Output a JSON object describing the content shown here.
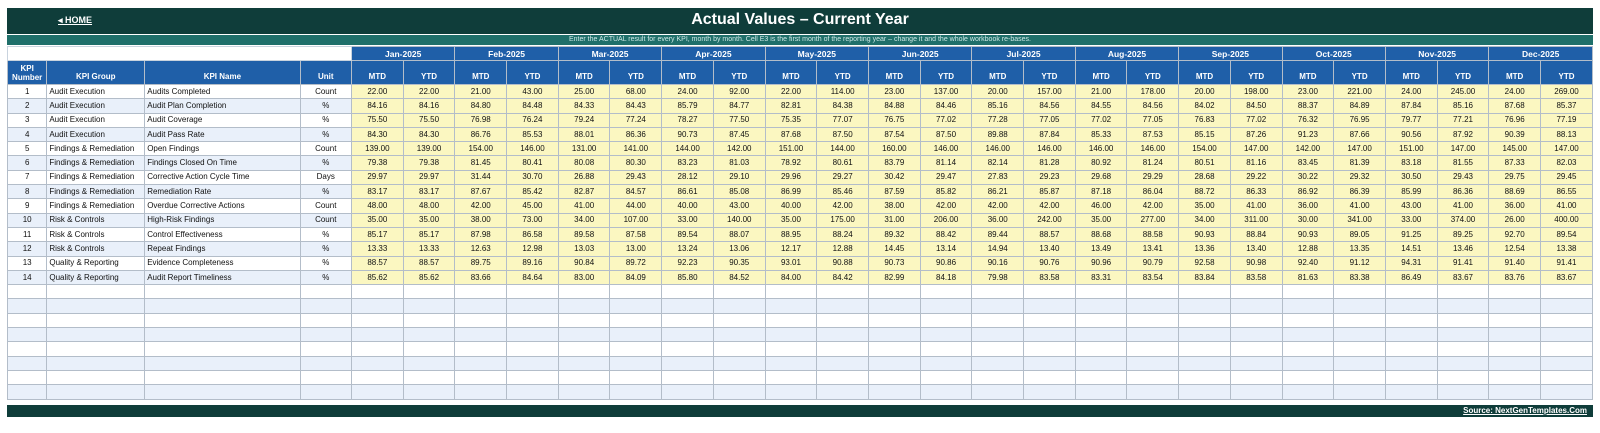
{
  "header": {
    "home_label": "◂ HOME",
    "title": "Actual Values  –  Current Year",
    "subtitle": "Enter the ACTUAL result for every KPI, month by month. Cell E3 is the first month of the reporting year – change it and the whole workbook re-bases."
  },
  "columns": {
    "kpi_number": "KPI Number",
    "kpi_group": "KPI Group",
    "kpi_name": "KPI Name",
    "unit": "Unit",
    "mtd": "MTD",
    "ytd": "YTD"
  },
  "months": [
    "Jan-2025",
    "Feb-2025",
    "Mar-2025",
    "Apr-2025",
    "May-2025",
    "Jun-2025",
    "Jul-2025",
    "Aug-2025",
    "Sep-2025",
    "Oct-2025",
    "Nov-2025",
    "Dec-2025"
  ],
  "rows": [
    {
      "num": "1",
      "group": "Audit Execution",
      "name": "Audits Completed",
      "unit": "Count",
      "values": [
        "22.00",
        "22.00",
        "21.00",
        "43.00",
        "25.00",
        "68.00",
        "24.00",
        "92.00",
        "22.00",
        "114.00",
        "23.00",
        "137.00",
        "20.00",
        "157.00",
        "21.00",
        "178.00",
        "20.00",
        "198.00",
        "23.00",
        "221.00",
        "24.00",
        "245.00",
        "24.00",
        "269.00"
      ]
    },
    {
      "num": "2",
      "group": "Audit Execution",
      "name": "Audit Plan Completion",
      "unit": "%",
      "values": [
        "84.16",
        "84.16",
        "84.80",
        "84.48",
        "84.33",
        "84.43",
        "85.79",
        "84.77",
        "82.81",
        "84.38",
        "84.88",
        "84.46",
        "85.16",
        "84.56",
        "84.55",
        "84.56",
        "84.02",
        "84.50",
        "88.37",
        "84.89",
        "87.84",
        "85.16",
        "87.68",
        "85.37"
      ]
    },
    {
      "num": "3",
      "group": "Audit Execution",
      "name": "Audit Coverage",
      "unit": "%",
      "values": [
        "75.50",
        "75.50",
        "76.98",
        "76.24",
        "79.24",
        "77.24",
        "78.27",
        "77.50",
        "75.35",
        "77.07",
        "76.75",
        "77.02",
        "77.28",
        "77.05",
        "77.02",
        "77.05",
        "76.83",
        "77.02",
        "76.32",
        "76.95",
        "79.77",
        "77.21",
        "76.96",
        "77.19"
      ]
    },
    {
      "num": "4",
      "group": "Audit Execution",
      "name": "Audit Pass Rate",
      "unit": "%",
      "values": [
        "84.30",
        "84.30",
        "86.76",
        "85.53",
        "88.01",
        "86.36",
        "90.73",
        "87.45",
        "87.68",
        "87.50",
        "87.54",
        "87.50",
        "89.88",
        "87.84",
        "85.33",
        "87.53",
        "85.15",
        "87.26",
        "91.23",
        "87.66",
        "90.56",
        "87.92",
        "90.39",
        "88.13"
      ]
    },
    {
      "num": "5",
      "group": "Findings & Remediation",
      "name": "Open Findings",
      "unit": "Count",
      "values": [
        "139.00",
        "139.00",
        "154.00",
        "146.00",
        "131.00",
        "141.00",
        "144.00",
        "142.00",
        "151.00",
        "144.00",
        "160.00",
        "146.00",
        "146.00",
        "146.00",
        "146.00",
        "146.00",
        "154.00",
        "147.00",
        "142.00",
        "147.00",
        "151.00",
        "147.00",
        "145.00",
        "147.00"
      ]
    },
    {
      "num": "6",
      "group": "Findings & Remediation",
      "name": "Findings Closed On Time",
      "unit": "%",
      "values": [
        "79.38",
        "79.38",
        "81.45",
        "80.41",
        "80.08",
        "80.30",
        "83.23",
        "81.03",
        "78.92",
        "80.61",
        "83.79",
        "81.14",
        "82.14",
        "81.28",
        "80.92",
        "81.24",
        "80.51",
        "81.16",
        "83.45",
        "81.39",
        "83.18",
        "81.55",
        "87.33",
        "82.03"
      ]
    },
    {
      "num": "7",
      "group": "Findings & Remediation",
      "name": "Corrective Action Cycle Time",
      "unit": "Days",
      "values": [
        "29.97",
        "29.97",
        "31.44",
        "30.70",
        "26.88",
        "29.43",
        "28.12",
        "29.10",
        "29.96",
        "29.27",
        "30.42",
        "29.47",
        "27.83",
        "29.23",
        "29.68",
        "29.29",
        "28.68",
        "29.22",
        "30.22",
        "29.32",
        "30.50",
        "29.43",
        "29.75",
        "29.45"
      ]
    },
    {
      "num": "8",
      "group": "Findings & Remediation",
      "name": "Remediation Rate",
      "unit": "%",
      "values": [
        "83.17",
        "83.17",
        "87.67",
        "85.42",
        "82.87",
        "84.57",
        "86.61",
        "85.08",
        "86.99",
        "85.46",
        "87.59",
        "85.82",
        "86.21",
        "85.87",
        "87.18",
        "86.04",
        "88.72",
        "86.33",
        "86.92",
        "86.39",
        "85.99",
        "86.36",
        "88.69",
        "86.55"
      ]
    },
    {
      "num": "9",
      "group": "Findings & Remediation",
      "name": "Overdue Corrective Actions",
      "unit": "Count",
      "values": [
        "48.00",
        "48.00",
        "42.00",
        "45.00",
        "41.00",
        "44.00",
        "40.00",
        "43.00",
        "40.00",
        "42.00",
        "38.00",
        "42.00",
        "42.00",
        "42.00",
        "46.00",
        "42.00",
        "35.00",
        "41.00",
        "36.00",
        "41.00",
        "43.00",
        "41.00",
        "36.00",
        "41.00"
      ]
    },
    {
      "num": "10",
      "group": "Risk & Controls",
      "name": "High-Risk Findings",
      "unit": "Count",
      "values": [
        "35.00",
        "35.00",
        "38.00",
        "73.00",
        "34.00",
        "107.00",
        "33.00",
        "140.00",
        "35.00",
        "175.00",
        "31.00",
        "206.00",
        "36.00",
        "242.00",
        "35.00",
        "277.00",
        "34.00",
        "311.00",
        "30.00",
        "341.00",
        "33.00",
        "374.00",
        "26.00",
        "400.00"
      ]
    },
    {
      "num": "11",
      "group": "Risk & Controls",
      "name": "Control Effectiveness",
      "unit": "%",
      "values": [
        "85.17",
        "85.17",
        "87.98",
        "86.58",
        "89.58",
        "87.58",
        "89.54",
        "88.07",
        "88.95",
        "88.24",
        "89.32",
        "88.42",
        "89.44",
        "88.57",
        "88.68",
        "88.58",
        "90.93",
        "88.84",
        "90.93",
        "89.05",
        "91.25",
        "89.25",
        "92.70",
        "89.54"
      ]
    },
    {
      "num": "12",
      "group": "Risk & Controls",
      "name": "Repeat Findings",
      "unit": "%",
      "values": [
        "13.33",
        "13.33",
        "12.63",
        "12.98",
        "13.03",
        "13.00",
        "13.24",
        "13.06",
        "12.17",
        "12.88",
        "14.45",
        "13.14",
        "14.94",
        "13.40",
        "13.49",
        "13.41",
        "13.36",
        "13.40",
        "12.88",
        "13.35",
        "14.51",
        "13.46",
        "12.54",
        "13.38"
      ]
    },
    {
      "num": "13",
      "group": "Quality & Reporting",
      "name": "Evidence Completeness",
      "unit": "%",
      "values": [
        "88.57",
        "88.57",
        "89.75",
        "89.16",
        "90.84",
        "89.72",
        "92.23",
        "90.35",
        "93.01",
        "90.88",
        "90.73",
        "90.86",
        "90.16",
        "90.76",
        "90.96",
        "90.79",
        "92.58",
        "90.98",
        "92.40",
        "91.12",
        "94.31",
        "91.41",
        "91.40",
        "91.41"
      ]
    },
    {
      "num": "14",
      "group": "Quality & Reporting",
      "name": "Audit Report Timeliness",
      "unit": "%",
      "values": [
        "85.62",
        "85.62",
        "83.66",
        "84.64",
        "83.00",
        "84.09",
        "85.80",
        "84.52",
        "84.00",
        "84.42",
        "82.99",
        "84.18",
        "79.98",
        "83.58",
        "83.31",
        "83.54",
        "83.84",
        "83.58",
        "81.63",
        "83.38",
        "86.49",
        "83.67",
        "83.76",
        "83.67"
      ]
    }
  ],
  "empty_row_count": 8,
  "footer": {
    "source_label": "Source: NextGenTemplates.Com"
  },
  "colors": {
    "title_bar": "#0f3d3a",
    "subtitle_bar": "#1f6f6a",
    "header_blue": "#1f5fa8",
    "value_cell": "#fbf7c1",
    "stripe": "#e9f0fa"
  }
}
